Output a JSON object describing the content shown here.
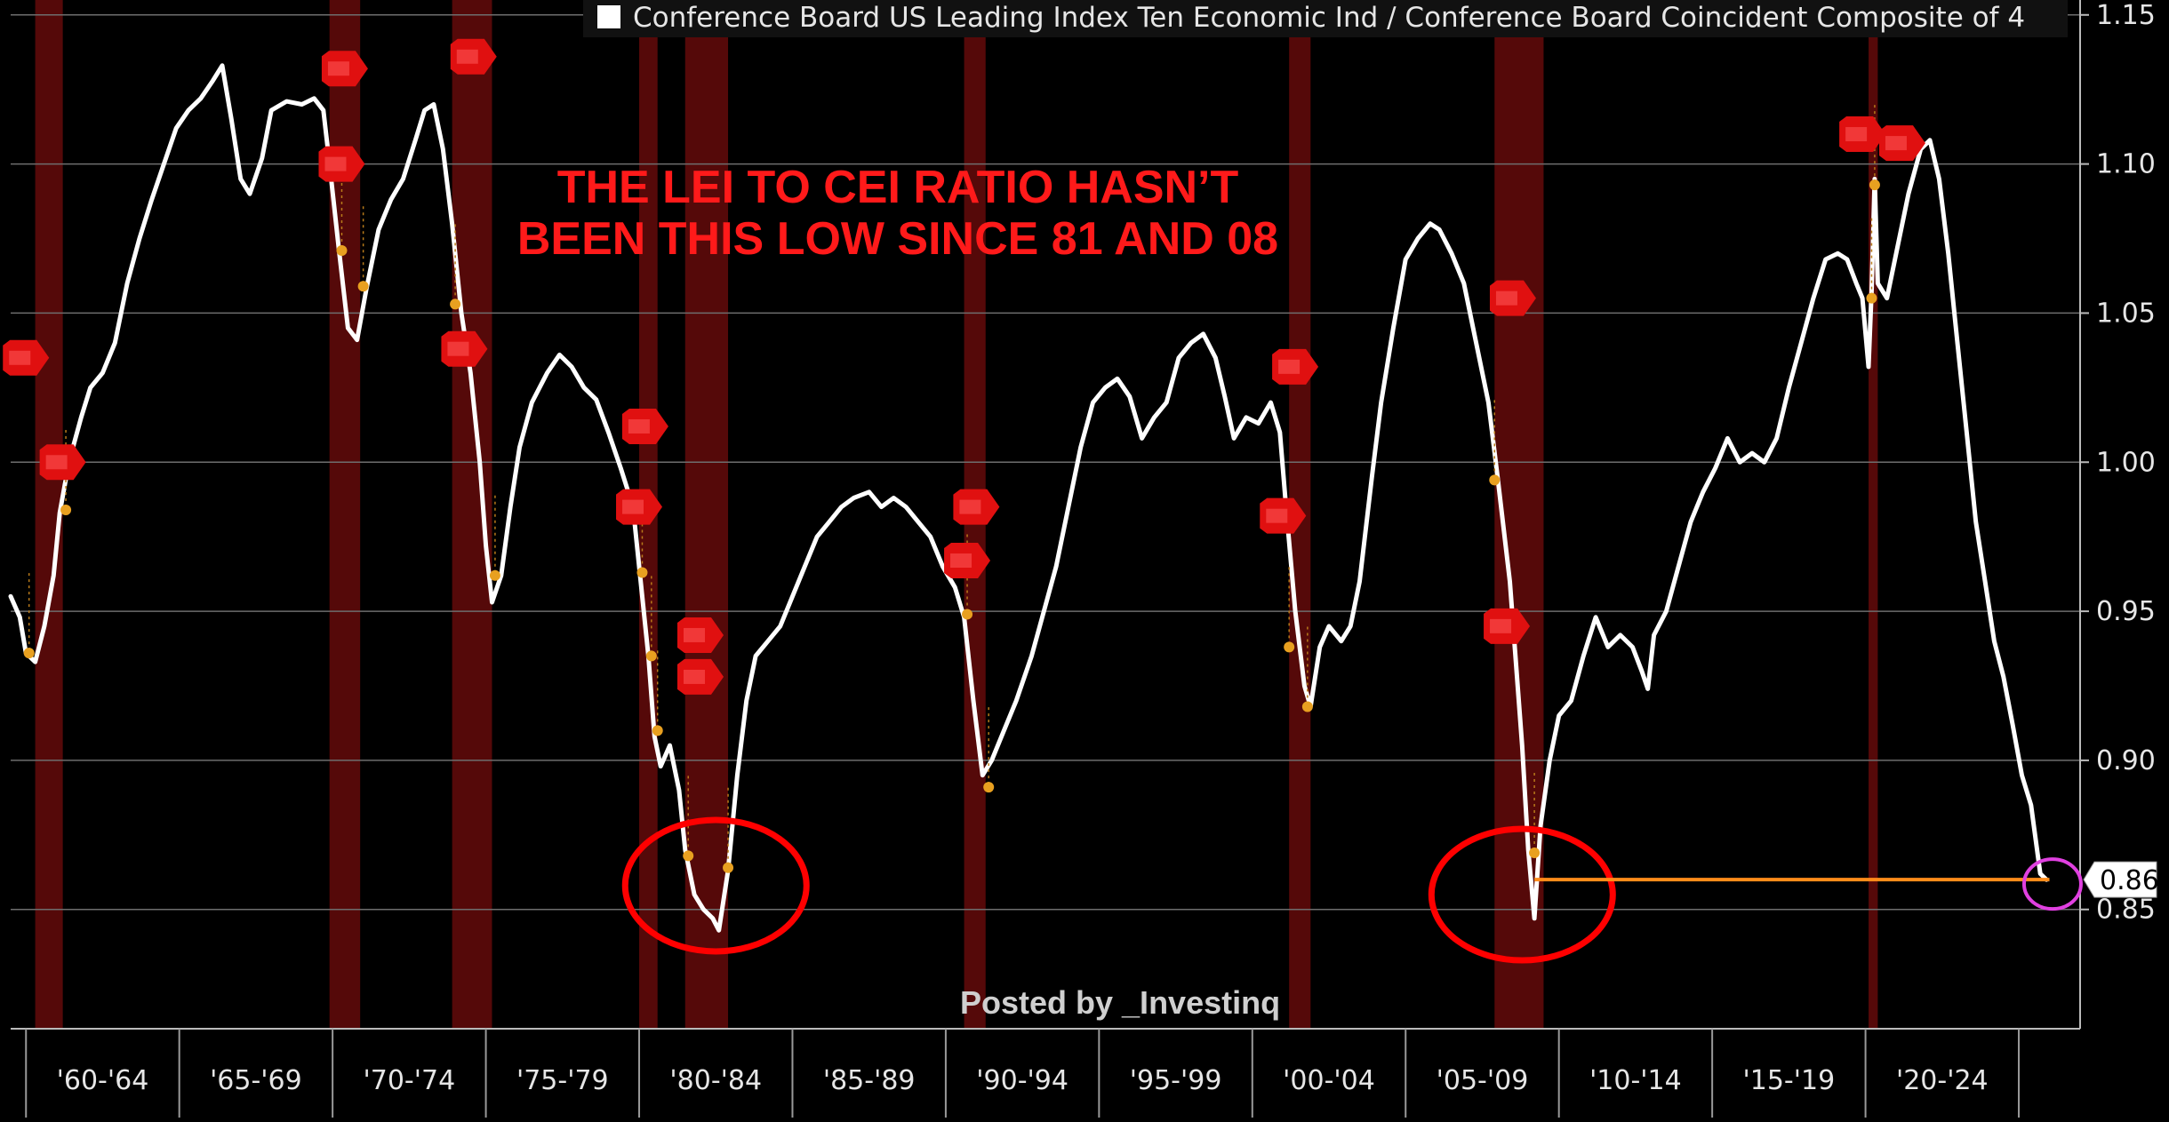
{
  "legend": {
    "label": "Conference Board US Leading Index Ten Economic Ind / Conference Board Coincident Composite of 4"
  },
  "annotation": {
    "headline": "THE LEI TO CEI RATIO HASN’T BEEN THIS LOW SINCE 81 AND 08",
    "watermark": "Posted by _Investinq",
    "last_value_label": "0.86"
  },
  "colors": {
    "background": "#000000",
    "line": "#ffffff",
    "recession_band": "#5a0a0a",
    "rec_marker": "#e01010",
    "headline": "#ff1a1a",
    "circle": "#ff0000",
    "current_circle": "#e040e0",
    "reference_line": "#ff8c1a",
    "gridline": "#6e6e6e"
  },
  "chart_data": {
    "type": "line",
    "title": "",
    "xlabel": "",
    "ylabel": "",
    "x_range": [
      1959.5,
      2027.0
    ],
    "ylim": [
      0.81,
      1.155
    ],
    "y_ticks": [
      "0.85",
      "0.90",
      "0.95",
      "1.00",
      "1.05",
      "1.10",
      "1.15"
    ],
    "x_tick_labels": [
      "'60-'64",
      "'65-'69",
      "'70-'74",
      "'75-'79",
      "'80-'84",
      "'85-'89",
      "'90-'94",
      "'95-'99",
      "'00-'04",
      "'05-'09",
      "'10-'14",
      "'15-'19",
      "'20-'24"
    ],
    "grid": true,
    "legend_position": "top",
    "recessions": [
      [
        1960.3,
        1961.2
      ],
      [
        1969.9,
        1970.9
      ],
      [
        1973.9,
        1975.2
      ],
      [
        1980.0,
        1980.6
      ],
      [
        1981.5,
        1982.9
      ],
      [
        1990.6,
        1991.3
      ],
      [
        2001.2,
        2001.9
      ],
      [
        2007.9,
        2009.5
      ],
      [
        2020.1,
        2020.4
      ]
    ],
    "series": [
      {
        "points": [
          [
            1959.5,
            0.955
          ],
          [
            1959.8,
            0.948
          ],
          [
            1960.0,
            0.936
          ],
          [
            1960.3,
            0.933
          ],
          [
            1960.6,
            0.945
          ],
          [
            1960.9,
            0.962
          ],
          [
            1961.1,
            0.983
          ],
          [
            1961.4,
            1.0
          ],
          [
            1961.8,
            1.015
          ],
          [
            1962.1,
            1.025
          ],
          [
            1962.5,
            1.03
          ],
          [
            1962.9,
            1.04
          ],
          [
            1963.3,
            1.06
          ],
          [
            1963.7,
            1.075
          ],
          [
            1964.1,
            1.088
          ],
          [
            1964.5,
            1.1
          ],
          [
            1964.9,
            1.112
          ],
          [
            1965.3,
            1.118
          ],
          [
            1965.7,
            1.122
          ],
          [
            1966.1,
            1.128
          ],
          [
            1966.4,
            1.133
          ],
          [
            1966.7,
            1.115
          ],
          [
            1967.0,
            1.095
          ],
          [
            1967.3,
            1.09
          ],
          [
            1967.7,
            1.102
          ],
          [
            1968.0,
            1.118
          ],
          [
            1968.5,
            1.121
          ],
          [
            1969.0,
            1.12
          ],
          [
            1969.4,
            1.122
          ],
          [
            1969.7,
            1.118
          ],
          [
            1969.9,
            1.1
          ],
          [
            1970.2,
            1.072
          ],
          [
            1970.5,
            1.045
          ],
          [
            1970.8,
            1.041
          ],
          [
            1971.1,
            1.058
          ],
          [
            1971.5,
            1.078
          ],
          [
            1971.9,
            1.088
          ],
          [
            1972.3,
            1.095
          ],
          [
            1972.7,
            1.108
          ],
          [
            1973.0,
            1.118
          ],
          [
            1973.3,
            1.12
          ],
          [
            1973.6,
            1.105
          ],
          [
            1973.9,
            1.08
          ],
          [
            1974.2,
            1.05
          ],
          [
            1974.5,
            1.03
          ],
          [
            1974.8,
            1.0
          ],
          [
            1975.0,
            0.972
          ],
          [
            1975.2,
            0.953
          ],
          [
            1975.5,
            0.962
          ],
          [
            1975.8,
            0.985
          ],
          [
            1976.1,
            1.005
          ],
          [
            1976.5,
            1.02
          ],
          [
            1977.0,
            1.03
          ],
          [
            1977.4,
            1.036
          ],
          [
            1977.8,
            1.032
          ],
          [
            1978.2,
            1.025
          ],
          [
            1978.6,
            1.021
          ],
          [
            1979.0,
            1.01
          ],
          [
            1979.4,
            0.998
          ],
          [
            1979.8,
            0.985
          ],
          [
            1980.0,
            0.965
          ],
          [
            1980.3,
            0.935
          ],
          [
            1980.5,
            0.908
          ],
          [
            1980.7,
            0.898
          ],
          [
            1981.0,
            0.905
          ],
          [
            1981.3,
            0.89
          ],
          [
            1981.5,
            0.87
          ],
          [
            1981.8,
            0.855
          ],
          [
            1982.1,
            0.85
          ],
          [
            1982.4,
            0.847
          ],
          [
            1982.6,
            0.843
          ],
          [
            1982.9,
            0.863
          ],
          [
            1983.2,
            0.895
          ],
          [
            1983.5,
            0.92
          ],
          [
            1983.8,
            0.935
          ],
          [
            1984.2,
            0.94
          ],
          [
            1984.6,
            0.945
          ],
          [
            1985.0,
            0.955
          ],
          [
            1985.4,
            0.965
          ],
          [
            1985.8,
            0.975
          ],
          [
            1986.2,
            0.98
          ],
          [
            1986.6,
            0.985
          ],
          [
            1987.0,
            0.988
          ],
          [
            1987.5,
            0.99
          ],
          [
            1987.9,
            0.985
          ],
          [
            1988.3,
            0.988
          ],
          [
            1988.7,
            0.985
          ],
          [
            1989.1,
            0.98
          ],
          [
            1989.5,
            0.975
          ],
          [
            1989.9,
            0.965
          ],
          [
            1990.3,
            0.958
          ],
          [
            1990.6,
            0.948
          ],
          [
            1990.9,
            0.92
          ],
          [
            1991.2,
            0.895
          ],
          [
            1991.5,
            0.9
          ],
          [
            1991.9,
            0.91
          ],
          [
            1992.3,
            0.92
          ],
          [
            1992.8,
            0.935
          ],
          [
            1993.2,
            0.95
          ],
          [
            1993.6,
            0.965
          ],
          [
            1994.0,
            0.985
          ],
          [
            1994.4,
            1.005
          ],
          [
            1994.8,
            1.02
          ],
          [
            1995.2,
            1.025
          ],
          [
            1995.6,
            1.028
          ],
          [
            1996.0,
            1.022
          ],
          [
            1996.4,
            1.008
          ],
          [
            1996.8,
            1.015
          ],
          [
            1997.2,
            1.02
          ],
          [
            1997.6,
            1.035
          ],
          [
            1998.0,
            1.04
          ],
          [
            1998.4,
            1.043
          ],
          [
            1998.8,
            1.035
          ],
          [
            1999.1,
            1.022
          ],
          [
            1999.4,
            1.008
          ],
          [
            1999.8,
            1.015
          ],
          [
            2000.2,
            1.013
          ],
          [
            2000.6,
            1.02
          ],
          [
            2000.9,
            1.01
          ],
          [
            2001.1,
            0.985
          ],
          [
            2001.4,
            0.95
          ],
          [
            2001.7,
            0.925
          ],
          [
            2001.9,
            0.918
          ],
          [
            2002.2,
            0.938
          ],
          [
            2002.5,
            0.945
          ],
          [
            2002.9,
            0.94
          ],
          [
            2003.2,
            0.945
          ],
          [
            2003.5,
            0.96
          ],
          [
            2003.9,
            0.995
          ],
          [
            2004.2,
            1.02
          ],
          [
            2004.6,
            1.045
          ],
          [
            2005.0,
            1.068
          ],
          [
            2005.4,
            1.075
          ],
          [
            2005.8,
            1.08
          ],
          [
            2006.1,
            1.078
          ],
          [
            2006.5,
            1.07
          ],
          [
            2006.9,
            1.06
          ],
          [
            2007.3,
            1.04
          ],
          [
            2007.7,
            1.02
          ],
          [
            2008.0,
            0.995
          ],
          [
            2008.4,
            0.96
          ],
          [
            2008.8,
            0.905
          ],
          [
            2009.0,
            0.87
          ],
          [
            2009.2,
            0.847
          ],
          [
            2009.4,
            0.878
          ],
          [
            2009.7,
            0.9
          ],
          [
            2010.0,
            0.915
          ],
          [
            2010.4,
            0.92
          ],
          [
            2010.8,
            0.935
          ],
          [
            2011.2,
            0.948
          ],
          [
            2011.6,
            0.938
          ],
          [
            2012.0,
            0.942
          ],
          [
            2012.4,
            0.938
          ],
          [
            2012.7,
            0.93
          ],
          [
            2012.9,
            0.924
          ],
          [
            2013.1,
            0.942
          ],
          [
            2013.5,
            0.95
          ],
          [
            2013.9,
            0.965
          ],
          [
            2014.3,
            0.98
          ],
          [
            2014.7,
            0.99
          ],
          [
            2015.1,
            0.998
          ],
          [
            2015.5,
            1.008
          ],
          [
            2015.9,
            1.0
          ],
          [
            2016.3,
            1.003
          ],
          [
            2016.7,
            1.0
          ],
          [
            2017.1,
            1.008
          ],
          [
            2017.5,
            1.025
          ],
          [
            2017.9,
            1.04
          ],
          [
            2018.3,
            1.055
          ],
          [
            2018.7,
            1.068
          ],
          [
            2019.1,
            1.07
          ],
          [
            2019.4,
            1.068
          ],
          [
            2019.7,
            1.06
          ],
          [
            2019.9,
            1.055
          ],
          [
            2020.1,
            1.032
          ],
          [
            2020.2,
            1.058
          ],
          [
            2020.3,
            1.095
          ],
          [
            2020.4,
            1.06
          ],
          [
            2020.7,
            1.055
          ],
          [
            2021.0,
            1.07
          ],
          [
            2021.4,
            1.09
          ],
          [
            2021.8,
            1.105
          ],
          [
            2022.1,
            1.108
          ],
          [
            2022.4,
            1.095
          ],
          [
            2022.7,
            1.07
          ],
          [
            2023.0,
            1.04
          ],
          [
            2023.3,
            1.01
          ],
          [
            2023.6,
            0.98
          ],
          [
            2023.9,
            0.96
          ],
          [
            2024.2,
            0.94
          ],
          [
            2024.5,
            0.928
          ],
          [
            2024.8,
            0.912
          ],
          [
            2025.1,
            0.895
          ],
          [
            2025.4,
            0.885
          ],
          [
            2025.7,
            0.862
          ],
          [
            2025.9,
            0.86
          ]
        ]
      }
    ],
    "markers": [
      [
        1960.1,
        0.936
      ],
      [
        1961.3,
        0.984
      ],
      [
        1970.3,
        1.071
      ],
      [
        1971.0,
        1.059
      ],
      [
        1974.0,
        1.053
      ],
      [
        1975.3,
        0.962
      ],
      [
        1980.1,
        0.963
      ],
      [
        1980.4,
        0.935
      ],
      [
        1980.6,
        0.91
      ],
      [
        1981.6,
        0.868
      ],
      [
        1982.9,
        0.864
      ],
      [
        1990.7,
        0.949
      ],
      [
        1991.4,
        0.891
      ],
      [
        2001.2,
        0.938
      ],
      [
        2001.8,
        0.918
      ],
      [
        2007.9,
        0.994
      ],
      [
        2009.2,
        0.869
      ],
      [
        2020.2,
        1.055
      ],
      [
        2020.3,
        1.093
      ]
    ],
    "rec_tags": [
      [
        1960.0,
        1.035
      ],
      [
        1961.2,
        1.0
      ],
      [
        1970.4,
        1.132
      ],
      [
        1970.3,
        1.1
      ],
      [
        1974.6,
        1.136
      ],
      [
        1974.3,
        1.038
      ],
      [
        1980.2,
        1.012
      ],
      [
        1980.0,
        0.985
      ],
      [
        1982.0,
        0.942
      ],
      [
        1982.0,
        0.928
      ],
      [
        1991.0,
        0.985
      ],
      [
        1990.7,
        0.967
      ],
      [
        2001.4,
        1.032
      ],
      [
        2001.0,
        0.982
      ],
      [
        2008.5,
        1.055
      ],
      [
        2008.3,
        0.945
      ],
      [
        2019.9,
        1.11
      ],
      [
        2021.2,
        1.107
      ]
    ],
    "circles": [
      [
        1982.5,
        0.855
      ],
      [
        2008.8,
        0.852
      ]
    ],
    "current_circle": [
      2026.1,
      0.86
    ],
    "reference_line": {
      "from": 2009.2,
      "to": 2026.0,
      "value": 0.86
    }
  }
}
